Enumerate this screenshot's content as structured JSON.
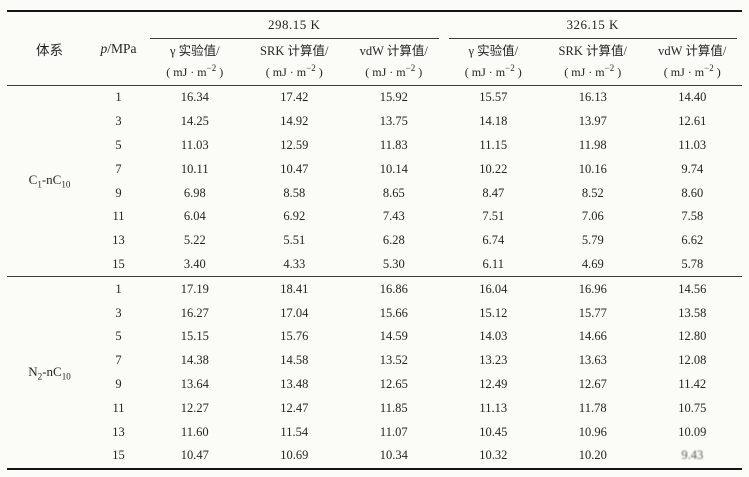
{
  "header": {
    "col_system": "体系",
    "col_pressure_pre": "p",
    "col_pressure_post": "/MPa",
    "temp_groups": [
      "298.15 K",
      "326.15 K"
    ],
    "value_cols": [
      "γ 实验值/",
      "SRK 计算值/",
      "vdW 计算值/"
    ],
    "unit": {
      "pre": "( mJ · m",
      "sup": "−2",
      "post": " )"
    }
  },
  "sections": [
    {
      "system": {
        "pre": "C",
        "sub_a": "1",
        "mid": "-nC",
        "sub_b": "10"
      },
      "rows": [
        {
          "p": "1",
          "values": [
            "16.34",
            "17.42",
            "15.92",
            "15.57",
            "16.13",
            "14.40"
          ]
        },
        {
          "p": "3",
          "values": [
            "14.25",
            "14.92",
            "13.75",
            "14.18",
            "13.97",
            "12.61"
          ]
        },
        {
          "p": "5",
          "values": [
            "11.03",
            "12.59",
            "11.83",
            "11.15",
            "11.98",
            "11.03"
          ]
        },
        {
          "p": "7",
          "values": [
            "10.11",
            "10.47",
            "10.14",
            "10.22",
            "10.16",
            "9.74"
          ]
        },
        {
          "p": "9",
          "values": [
            "6.98",
            "8.58",
            "8.65",
            "8.47",
            "8.52",
            "8.60"
          ]
        },
        {
          "p": "11",
          "values": [
            "6.04",
            "6.92",
            "7.43",
            "7.51",
            "7.06",
            "7.58"
          ]
        },
        {
          "p": "13",
          "values": [
            "5.22",
            "5.51",
            "6.28",
            "6.74",
            "5.79",
            "6.62"
          ]
        },
        {
          "p": "15",
          "values": [
            "3.40",
            "4.33",
            "5.30",
            "6.11",
            "4.69",
            "5.78"
          ]
        }
      ]
    },
    {
      "system": {
        "pre": "N",
        "sub_a": "2",
        "mid": "-nC",
        "sub_b": "10"
      },
      "rows": [
        {
          "p": "1",
          "values": [
            "17.19",
            "18.41",
            "16.86",
            "16.04",
            "16.96",
            "14.56"
          ]
        },
        {
          "p": "3",
          "values": [
            "16.27",
            "17.04",
            "15.66",
            "15.12",
            "15.77",
            "13.58"
          ]
        },
        {
          "p": "5",
          "values": [
            "15.15",
            "15.76",
            "14.59",
            "14.03",
            "14.66",
            "12.80"
          ]
        },
        {
          "p": "7",
          "values": [
            "14.38",
            "14.58",
            "13.52",
            "13.23",
            "13.63",
            "12.08"
          ]
        },
        {
          "p": "9",
          "values": [
            "13.64",
            "13.48",
            "12.65",
            "12.49",
            "12.67",
            "11.42"
          ]
        },
        {
          "p": "11",
          "values": [
            "12.27",
            "12.47",
            "11.85",
            "11.13",
            "11.78",
            "10.75"
          ]
        },
        {
          "p": "13",
          "values": [
            "11.60",
            "11.54",
            "11.07",
            "10.45",
            "10.96",
            "10.09"
          ]
        },
        {
          "p": "15",
          "values": [
            "10.47",
            "10.69",
            "10.34",
            "10.32",
            "10.20",
            "9.43"
          ]
        }
      ]
    }
  ]
}
